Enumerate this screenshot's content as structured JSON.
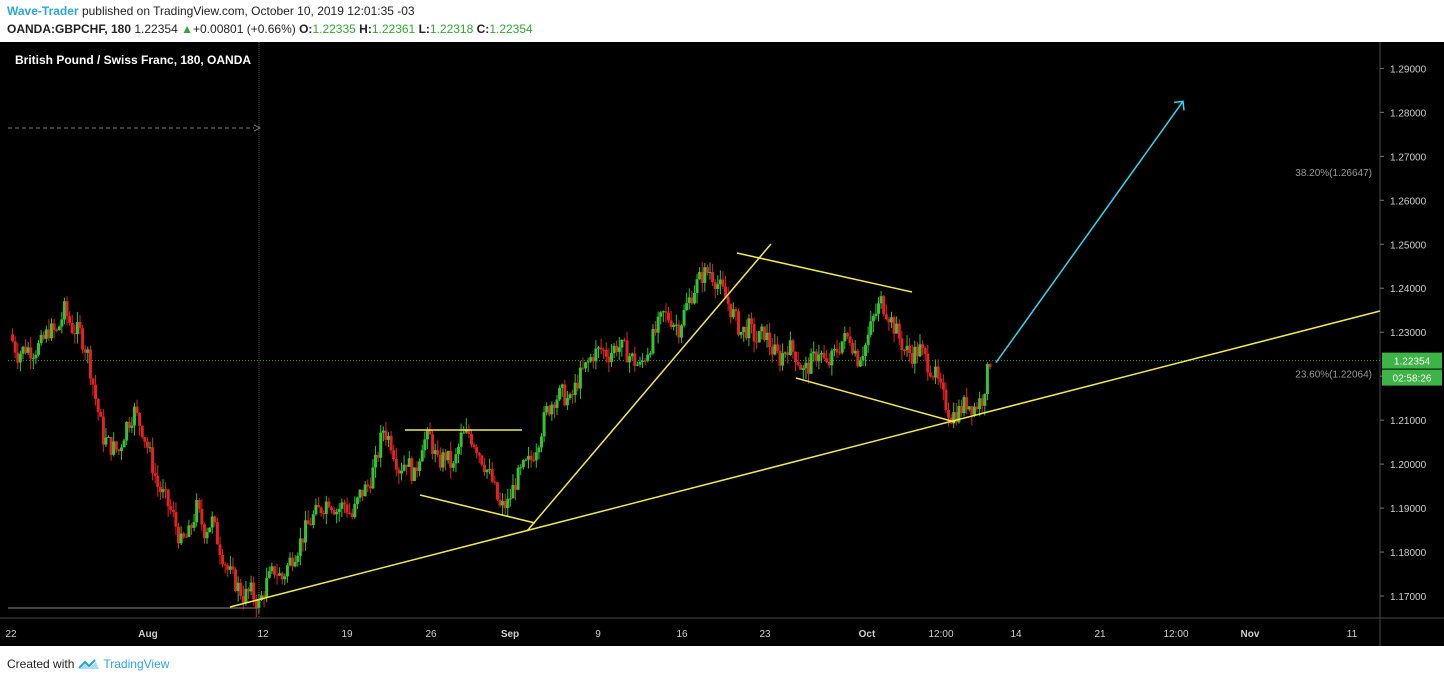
{
  "header": {
    "author": "Wave-Trader",
    "published_text": "published on TradingView.com, October 10, 2019 12:01:35 -03",
    "symbol": "OANDA:GBPCHF, 180",
    "last": "1.22354",
    "change_arrow": "▲",
    "change": "+0.00801 (+0.66%)",
    "o_label": "O:",
    "o_value": "1.22335",
    "h_label": "H:",
    "h_value": "1.22361",
    "l_label": "L:",
    "l_value": "1.22318",
    "c_label": "C:",
    "c_value": "1.22354"
  },
  "footer": {
    "created_with": "Created with",
    "brand": "TradingView",
    "logo_icon": "tradingview-logo-icon"
  },
  "chart_data": {
    "type": "candlestick",
    "title": "British Pound / Swiss Franc, 180, OANDA",
    "y_axis": {
      "range": [
        1.165,
        1.296
      ],
      "ticks": [
        "1.29000",
        "1.28000",
        "1.27000",
        "1.26000",
        "1.25000",
        "1.24000",
        "1.23000",
        "1.22000",
        "1.21000",
        "1.20000",
        "1.19000",
        "1.18000",
        "1.17000"
      ]
    },
    "x_axis": {
      "labels": [
        {
          "label": "22",
          "bold": false
        },
        {
          "label": "Aug",
          "bold": true
        },
        {
          "label": "12",
          "bold": false
        },
        {
          "label": "19",
          "bold": false
        },
        {
          "label": "26",
          "bold": false
        },
        {
          "label": "Sep",
          "bold": true
        },
        {
          "label": "9",
          "bold": false
        },
        {
          "label": "16",
          "bold": false
        },
        {
          "label": "23",
          "bold": false
        },
        {
          "label": "Oct",
          "bold": true
        },
        {
          "label": "12:00",
          "bold": false
        },
        {
          "label": "14",
          "bold": false
        },
        {
          "label": "21",
          "bold": false
        },
        {
          "label": "12:00",
          "bold": false
        },
        {
          "label": "Nov",
          "bold": true
        },
        {
          "label": "11",
          "bold": false
        }
      ]
    },
    "price_path": [
      1.2295,
      1.225,
      1.2265,
      1.2258,
      1.2272,
      1.2305,
      1.2298,
      1.235,
      1.231,
      1.2298,
      1.225,
      1.215,
      1.206,
      1.204,
      1.203,
      1.209,
      1.212,
      1.208,
      1.202,
      1.195,
      1.192,
      1.188,
      1.182,
      1.184,
      1.19,
      1.185,
      1.187,
      1.181,
      1.176,
      1.173,
      1.17,
      1.171,
      1.168,
      1.173,
      1.176,
      1.174,
      1.178,
      1.181,
      1.185,
      1.188,
      1.19,
      1.192,
      1.1895,
      1.191,
      1.188,
      1.193,
      1.195,
      1.2,
      1.208,
      1.205,
      1.199,
      1.201,
      1.197,
      1.205,
      1.206,
      1.2,
      1.202,
      1.199,
      1.206,
      1.207,
      1.204,
      1.2,
      1.196,
      1.19,
      1.191,
      1.196,
      1.199,
      1.201,
      1.206,
      1.212,
      1.215,
      1.216,
      1.214,
      1.219,
      1.222,
      1.225,
      1.226,
      1.225,
      1.227,
      1.226,
      1.224,
      1.222,
      1.226,
      1.23,
      1.234,
      1.233,
      1.231,
      1.236,
      1.24,
      1.243,
      1.244,
      1.241,
      1.238,
      1.234,
      1.23,
      1.231,
      1.228,
      1.23,
      1.226,
      1.224,
      1.227,
      1.225,
      1.221,
      1.223,
      1.226,
      1.222,
      1.225,
      1.228,
      1.229,
      1.224,
      1.227,
      1.233,
      1.237,
      1.234,
      1.23,
      1.226,
      1.225,
      1.226,
      1.223,
      1.22,
      1.215,
      1.211,
      1.212,
      1.214,
      1.213,
      1.215,
      1.2235
    ],
    "horizontal_lines": [
      {
        "label": "1.22354",
        "price": 1.22354,
        "color": "#2eaa2e"
      }
    ],
    "price_label": {
      "value": "1.22354",
      "countdown": "02:58:26",
      "color": "#3cb446"
    },
    "fibonacci": [
      {
        "label": "38.20%(1.26647)",
        "price": 1.26647
      },
      {
        "label": "23.60%(1.22064)",
        "price": 1.22064
      }
    ],
    "drawings": {
      "line_color": "#f2e94e",
      "arrow_color": "#2fd7f0",
      "arrow_target_price": 1.2825
    },
    "colors": {
      "background": "#000000",
      "bull": "#35c235",
      "bear": "#e02424",
      "text": "#ffffff",
      "axis_text": "#cfcfcf"
    }
  }
}
